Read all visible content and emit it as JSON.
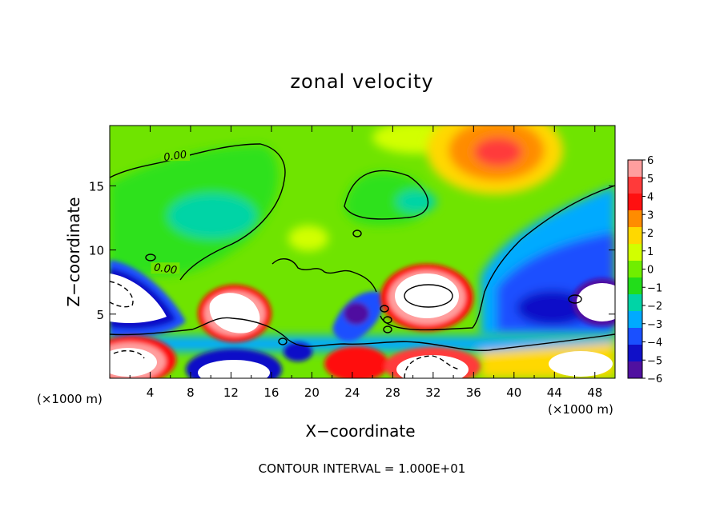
{
  "chart_data": {
    "type": "heatmap",
    "title": "zonal velocity",
    "xlabel": "X−coordinate",
    "ylabel": "Z−coordinate",
    "x_unit_label": "(×1000 m)",
    "footnote": "CONTOUR INTERVAL = 1.000E+01",
    "xlim": [
      0,
      50
    ],
    "ylim": [
      0,
      19.7
    ],
    "x_ticks": [
      4,
      8,
      12,
      16,
      20,
      24,
      28,
      32,
      36,
      40,
      44,
      48
    ],
    "x_tick_labels": [
      "4",
      "8",
      "12",
      "16",
      "20",
      "24",
      "28",
      "32",
      "36",
      "40",
      "44",
      "48"
    ],
    "y_ticks": [
      5,
      10,
      15
    ],
    "y_tick_labels": [
      "5",
      "10",
      "15"
    ],
    "colorbar": {
      "range": [
        -6,
        6
      ],
      "tick_values": [
        6,
        5,
        4,
        3,
        2,
        1,
        0,
        -1,
        -2,
        -3,
        -4,
        -5,
        -6
      ],
      "tick_labels": [
        "6",
        "5",
        "4",
        "3",
        "2",
        "1",
        "0",
        "−1",
        "−2",
        "−3",
        "−4",
        "−5",
        "−6"
      ]
    },
    "contour_labels": [
      {
        "text": "0.00",
        "x": 6.5,
        "z": 17.2
      },
      {
        "text": "0.00",
        "x": 5.5,
        "z": 8.4
      }
    ],
    "background_value": 0.3,
    "features": [
      {
        "kind": "positive_max",
        "x": 38.5,
        "z": 17.3,
        "value": 4.5
      },
      {
        "kind": "saturated_positive",
        "x": 31.5,
        "z": 6.4,
        "value": 6
      },
      {
        "kind": "saturated_positive",
        "x": 11.5,
        "z": 5.3,
        "value": 6
      },
      {
        "kind": "saturated_negative",
        "x": 1.5,
        "z": 6.0,
        "value": -6
      },
      {
        "kind": "saturated_negative",
        "x": 47.5,
        "z": 5.8,
        "value": -6
      },
      {
        "kind": "saturated_positive",
        "x": 1.5,
        "z": 1.8,
        "value": 6
      },
      {
        "kind": "saturated_negative",
        "x": 12.0,
        "z": 1.0,
        "value": -6
      },
      {
        "kind": "saturated_positive",
        "x": 31.0,
        "z": 1.2,
        "value": 6
      },
      {
        "kind": "negative_min",
        "x": 23.5,
        "z": 5.0,
        "value": -5
      },
      {
        "kind": "negative_min",
        "x": 46.0,
        "z": 7.0,
        "value": -4.5
      },
      {
        "kind": "negative_min",
        "x": 10.0,
        "z": 11.3,
        "value": -2.5
      },
      {
        "kind": "positive_max",
        "x": 23.5,
        "z": 1.5,
        "value": 4
      }
    ]
  },
  "colors": {
    "palette_high_to_low": [
      "#ff9e9e",
      "#ff3a3a",
      "#ff1010",
      "#ff8c00",
      "#ffd800",
      "#d2ff00",
      "#70ee00",
      "#22dd1a",
      "#00d4a6",
      "#00aaff",
      "#1a50ff",
      "#1010c8",
      "#5010a0"
    ],
    "contour_line": "#000000",
    "background": "#ffffff"
  }
}
